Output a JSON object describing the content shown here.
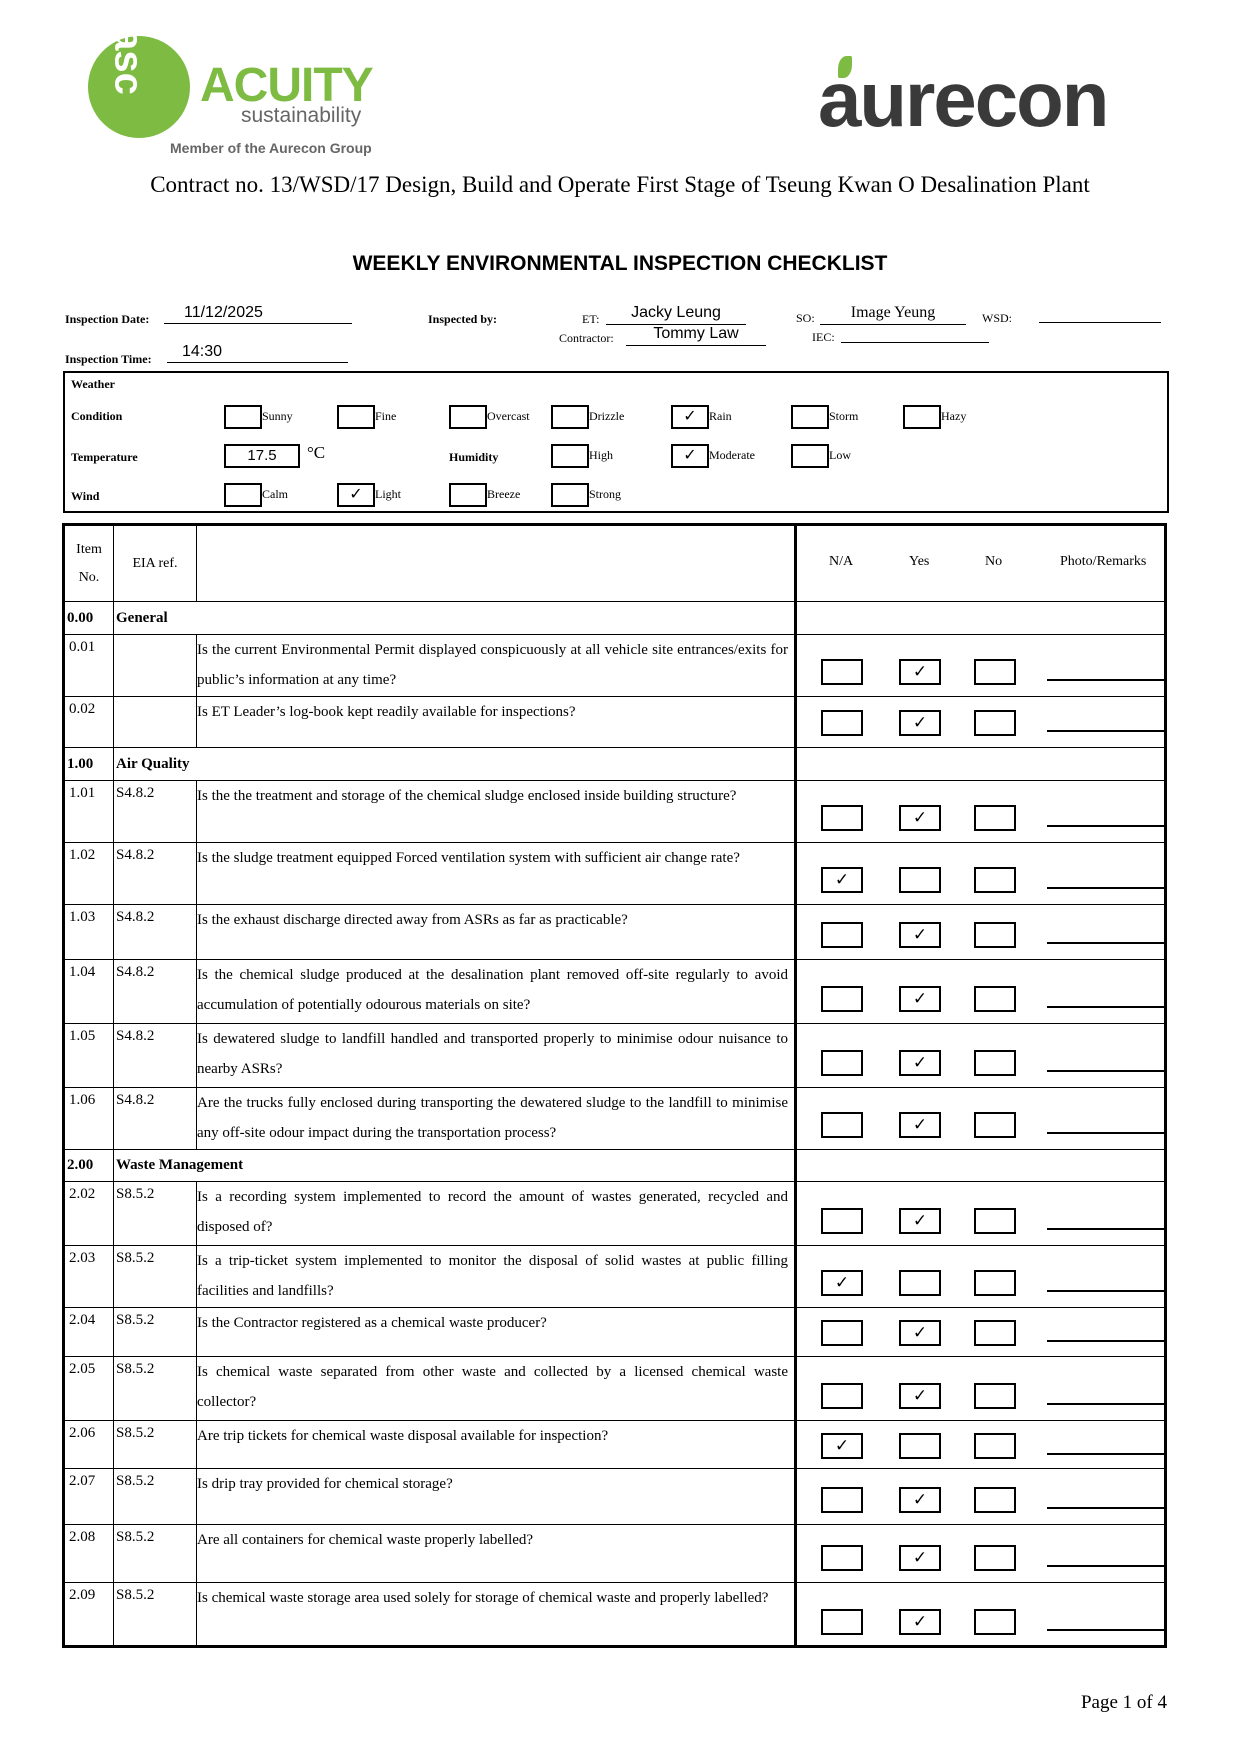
{
  "logos": {
    "acuity_mark": "asc",
    "acuity_name": "ACUITY",
    "acuity_sub": "sustainability",
    "acuity_member": "Member of the Aurecon Group",
    "aurecon": "aurecon"
  },
  "contract": "Contract no.  13/WSD/17 Design, Build and Operate First Stage of Tseung Kwan O Desalination Plant",
  "title": "WEEKLY ENVIRONMENTAL INSPECTION CHECKLIST",
  "info": {
    "date_label": "Inspection Date:",
    "date": "11/12/2025",
    "time_label": "Inspection Time:",
    "time": "14:30",
    "inspected_by_label": "Inspected by:",
    "et_label": "ET:",
    "et": "Jacky Leung",
    "contractor_label": "Contractor:",
    "contractor": "Tommy Law",
    "so_label": "SO:",
    "so": "Image Yeung",
    "wsd_label": "WSD:",
    "wsd": "",
    "iec_label": "IEC:",
    "iec": ""
  },
  "weather": {
    "title": "Weather",
    "condition_label": "Condition",
    "conditions": [
      {
        "label": "Sunny",
        "checked": false
      },
      {
        "label": "Fine",
        "checked": false
      },
      {
        "label": "Overcast",
        "checked": false
      },
      {
        "label": "Drizzle",
        "checked": false
      },
      {
        "label": "Rain",
        "checked": true
      },
      {
        "label": "Storm",
        "checked": false
      },
      {
        "label": "Hazy",
        "checked": false
      }
    ],
    "temperature_label": "Temperature",
    "temperature": "17.5",
    "temp_unit": "°C",
    "humidity_label": "Humidity",
    "humidity": [
      {
        "label": "High",
        "checked": false
      },
      {
        "label": "Moderate",
        "checked": true
      },
      {
        "label": "Low",
        "checked": false
      }
    ],
    "wind_label": "Wind",
    "wind": [
      {
        "label": "Calm",
        "checked": false
      },
      {
        "label": "Light",
        "checked": true
      },
      {
        "label": "Breeze",
        "checked": false
      },
      {
        "label": "Strong",
        "checked": false
      }
    ]
  },
  "table": {
    "headers": {
      "item": "Item No.",
      "eia": "EIA ref.",
      "na": "N/A",
      "yes": "Yes",
      "no": "No",
      "remarks": "Photo/Remarks"
    },
    "check_mark": "✓",
    "rows": [
      {
        "type": "section",
        "no": "0.00",
        "title": "General"
      },
      {
        "no": "0.01",
        "eia": "",
        "q": "Is the current Environmental Permit displayed conspicuously at all vehicle site entrances/exits for public’s information at any time?",
        "answer": "yes"
      },
      {
        "no": "0.02",
        "eia": "",
        "q": "Is ET Leader’s log-book kept readily available for inspections?",
        "answer": "yes"
      },
      {
        "type": "section",
        "no": "1.00",
        "title": "Air Quality"
      },
      {
        "no": "1.01",
        "eia": "S4.8.2",
        "q": "Is the the treatment and storage of the chemical sludge enclosed inside building structure?",
        "answer": "yes"
      },
      {
        "no": "1.02",
        "eia": "S4.8.2",
        "q": "Is the sludge treatment equipped Forced ventilation system with sufficient air change rate?",
        "answer": "na"
      },
      {
        "no": "1.03",
        "eia": "S4.8.2",
        "q": "Is the exhaust discharge directed away from ASRs as far as practicable?",
        "answer": "yes"
      },
      {
        "no": "1.04",
        "eia": "S4.8.2",
        "q": "Is the chemical sludge produced at the desalination plant removed off-site regularly to avoid accumulation of potentially odourous materials on site?",
        "answer": "yes"
      },
      {
        "no": "1.05",
        "eia": "S4.8.2",
        "q": "Is dewatered sludge to landfill handled and transported properly to minimise odour nuisance to nearby ASRs?",
        "answer": "yes"
      },
      {
        "no": "1.06",
        "eia": "S4.8.2",
        "q": "Are the trucks fully enclosed during transporting the dewatered sludge to the landfill to minimise any off-site odour impact during the transportation process?",
        "answer": "yes"
      },
      {
        "type": "section",
        "no": "2.00",
        "title": "Waste Management"
      },
      {
        "no": "2.02",
        "eia": "S8.5.2",
        "q": "Is a recording system implemented to record the amount of wastes generated, recycled and disposed of?",
        "answer": "yes"
      },
      {
        "no": "2.03",
        "eia": "S8.5.2",
        "q": "Is a trip-ticket system implemented to monitor the disposal of solid wastes at public filling facilities and landfills?",
        "answer": "na"
      },
      {
        "no": "2.04",
        "eia": "S8.5.2",
        "q": "Is the Contractor registered as a chemical waste producer?",
        "answer": "yes"
      },
      {
        "no": "2.05",
        "eia": "S8.5.2",
        "q": "Is chemical waste separated from other waste and collected by a licensed chemical waste collector?",
        "answer": "yes"
      },
      {
        "no": "2.06",
        "eia": "S8.5.2",
        "q": "Are trip tickets for chemical waste disposal available for inspection?",
        "answer": "na"
      },
      {
        "no": "2.07",
        "eia": "S8.5.2",
        "q": "Is drip tray provided for chemical storage?",
        "answer": "yes"
      },
      {
        "no": "2.08",
        "eia": "S8.5.2",
        "q": "Are all containers for chemical waste properly labelled?",
        "answer": "yes"
      },
      {
        "no": "2.09",
        "eia": "S8.5.2",
        "q": "Is chemical waste storage area used solely for storage of chemical waste and properly labelled?",
        "answer": "yes"
      }
    ]
  },
  "footer": {
    "page": "Page 1 of 4"
  }
}
